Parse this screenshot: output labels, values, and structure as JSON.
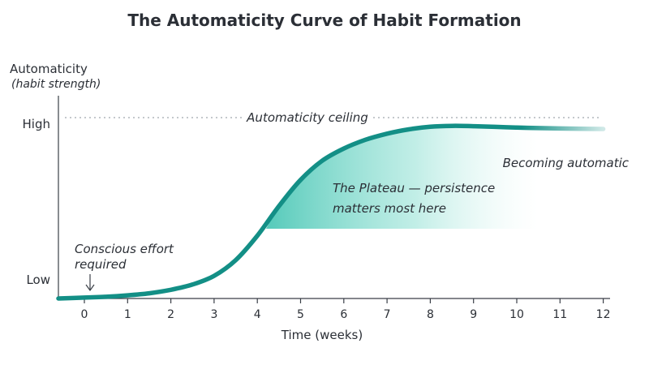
{
  "chart_data": {
    "type": "line",
    "title": "The Automaticity Curve of Habit Formation",
    "xlabel": "Time (weeks)",
    "ylabel": "Automaticity",
    "ylabel_sub": "(habit strength)",
    "x_ticks": [
      0,
      1,
      2,
      3,
      4,
      5,
      6,
      7,
      8,
      9,
      10,
      11,
      12
    ],
    "y_ticks": [
      {
        "label": "Low",
        "value": 0
      },
      {
        "label": "High",
        "value": 1
      }
    ],
    "xlim": [
      -0.6,
      12.2
    ],
    "ylim": [
      0,
      1.0
    ],
    "ceiling": {
      "value": 1.0,
      "label": "Automaticity ceiling"
    },
    "series": [
      {
        "color": "#138f86",
        "x": [
          -0.6,
          0,
          0.5,
          1,
          1.5,
          2,
          2.5,
          3,
          3.5,
          4,
          4.5,
          5,
          5.5,
          6,
          6.5,
          7,
          7.5,
          8,
          8.5,
          9,
          9.5,
          10,
          10.5,
          11,
          11.5,
          12
        ],
        "y": [
          0.0,
          0.005,
          0.01,
          0.018,
          0.03,
          0.05,
          0.08,
          0.13,
          0.22,
          0.36,
          0.53,
          0.68,
          0.79,
          0.86,
          0.91,
          0.945,
          0.97,
          0.985,
          0.99,
          0.988,
          0.984,
          0.98,
          0.977,
          0.975,
          0.973,
          0.972
        ]
      }
    ],
    "plateau_region": {
      "x_start": 4.2,
      "x_end": 10.5,
      "y_floor": 0.4
    },
    "annotations": {
      "conscious_line1": "Conscious effort",
      "conscious_line2": "required",
      "plateau_line1": "The Plateau — persistence",
      "plateau_line2": "matters most here",
      "automatic": "Becoming automatic"
    },
    "colors": {
      "curve": "#138f86",
      "shade": "#6fd6c8",
      "axis": "#3a3f47",
      "ceiling": "#8a9099"
    }
  }
}
